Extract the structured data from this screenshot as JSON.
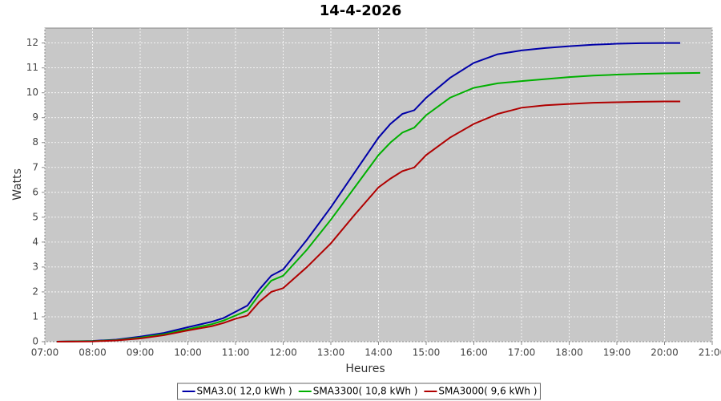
{
  "chart_data": {
    "type": "line",
    "title": "14-4-2026",
    "x_label": "Heures",
    "y_label": "Watts",
    "xlim": [
      7,
      21
    ],
    "xticks": [
      {
        "value": 7,
        "label": "07:00"
      },
      {
        "value": 8,
        "label": "08:00"
      },
      {
        "value": 9,
        "label": "09:00"
      },
      {
        "value": 10,
        "label": "10:00"
      },
      {
        "value": 11,
        "label": "11:00"
      },
      {
        "value": 12,
        "label": "12:00"
      },
      {
        "value": 13,
        "label": "13:00"
      },
      {
        "value": 14,
        "label": "14:00"
      },
      {
        "value": 15,
        "label": "15:00"
      },
      {
        "value": 16,
        "label": "16:00"
      },
      {
        "value": 17,
        "label": "17:00"
      },
      {
        "value": 18,
        "label": "18:00"
      },
      {
        "value": 19,
        "label": "19:00"
      },
      {
        "value": 20,
        "label": "20:00"
      },
      {
        "value": 21,
        "label": "21:00"
      }
    ],
    "ylim": [
      0,
      12.6
    ],
    "yticks": [
      0,
      1,
      2,
      3,
      4,
      5,
      6,
      7,
      8,
      9,
      10,
      11,
      12
    ],
    "grid": true,
    "legend": "bottom",
    "series": [
      {
        "name": "SMA3.0( 12,0 kWh )",
        "color": "#0000a8",
        "x": [
          7.25,
          8,
          8.5,
          9,
          9.5,
          10,
          10.5,
          10.75,
          11,
          11.25,
          11.5,
          11.75,
          12,
          12.5,
          13,
          13.5,
          14,
          14.25,
          14.5,
          14.75,
          15,
          15.5,
          16,
          16.5,
          17,
          17.5,
          18,
          18.5,
          19,
          19.5,
          20,
          20.33
        ],
        "values": [
          0,
          0.03,
          0.08,
          0.2,
          0.35,
          0.58,
          0.8,
          0.95,
          1.2,
          1.45,
          2.1,
          2.65,
          2.9,
          4.1,
          5.4,
          6.8,
          8.2,
          8.75,
          9.15,
          9.3,
          9.8,
          10.6,
          11.2,
          11.55,
          11.7,
          11.8,
          11.87,
          11.93,
          11.97,
          11.99,
          12.0,
          12.0
        ]
      },
      {
        "name": "SMA3300( 10,8 kWh )",
        "color": "#00b000",
        "x": [
          7.25,
          8,
          8.5,
          9,
          9.5,
          10,
          10.5,
          10.75,
          11,
          11.25,
          11.5,
          11.75,
          12,
          12.5,
          13,
          13.5,
          14,
          14.25,
          14.5,
          14.75,
          15,
          15.5,
          16,
          16.5,
          17,
          17.5,
          18,
          18.5,
          19,
          19.5,
          20,
          20.75
        ],
        "values": [
          0,
          0.02,
          0.06,
          0.16,
          0.3,
          0.5,
          0.7,
          0.85,
          1.05,
          1.25,
          1.9,
          2.45,
          2.65,
          3.7,
          4.9,
          6.2,
          7.5,
          8.0,
          8.4,
          8.6,
          9.1,
          9.8,
          10.2,
          10.38,
          10.47,
          10.55,
          10.63,
          10.69,
          10.73,
          10.76,
          10.78,
          10.8
        ]
      },
      {
        "name": "SMA3000( 9,6 kWh )",
        "color": "#b00000",
        "x": [
          7.25,
          8,
          8.5,
          9,
          9.5,
          10,
          10.5,
          10.75,
          11,
          11.25,
          11.5,
          11.75,
          12,
          12.5,
          13,
          13.5,
          14,
          14.25,
          14.5,
          14.75,
          15,
          15.5,
          16,
          16.5,
          17,
          17.5,
          18,
          18.5,
          19,
          19.5,
          20,
          20.33
        ],
        "values": [
          0,
          0.01,
          0.05,
          0.13,
          0.26,
          0.45,
          0.62,
          0.75,
          0.92,
          1.05,
          1.6,
          2.0,
          2.15,
          3.0,
          3.95,
          5.1,
          6.2,
          6.55,
          6.85,
          7.0,
          7.5,
          8.2,
          8.75,
          9.15,
          9.4,
          9.5,
          9.55,
          9.6,
          9.62,
          9.64,
          9.65,
          9.65
        ]
      }
    ]
  }
}
